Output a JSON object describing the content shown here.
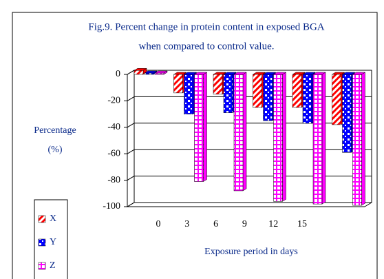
{
  "chart_data": {
    "type": "bar3d",
    "title": [
      "Fig.9. Percent change in protein content in exposed BGA",
      "when compared to control value."
    ],
    "ylabel": [
      "Percentage",
      "(%)"
    ],
    "xlabel": "Exposure period in days",
    "categories": [
      "0",
      "3",
      "6",
      "9",
      "12",
      "15"
    ],
    "series": [
      {
        "name": "X",
        "color": "#ff0000",
        "values": [
          3,
          -14,
          -15,
          -25,
          -25,
          -38
        ]
      },
      {
        "name": "Y",
        "color": "#0000ff",
        "values": [
          1,
          -30,
          -29,
          -35,
          -37,
          -59
        ]
      },
      {
        "name": "Z",
        "color": "#ff00ff",
        "values": [
          1,
          -81,
          -88,
          -96,
          -98,
          -99
        ]
      }
    ],
    "ylim": [
      -100,
      0
    ],
    "yticks": [
      0,
      -20,
      -40,
      -60,
      -80,
      -100
    ],
    "grid": true
  }
}
